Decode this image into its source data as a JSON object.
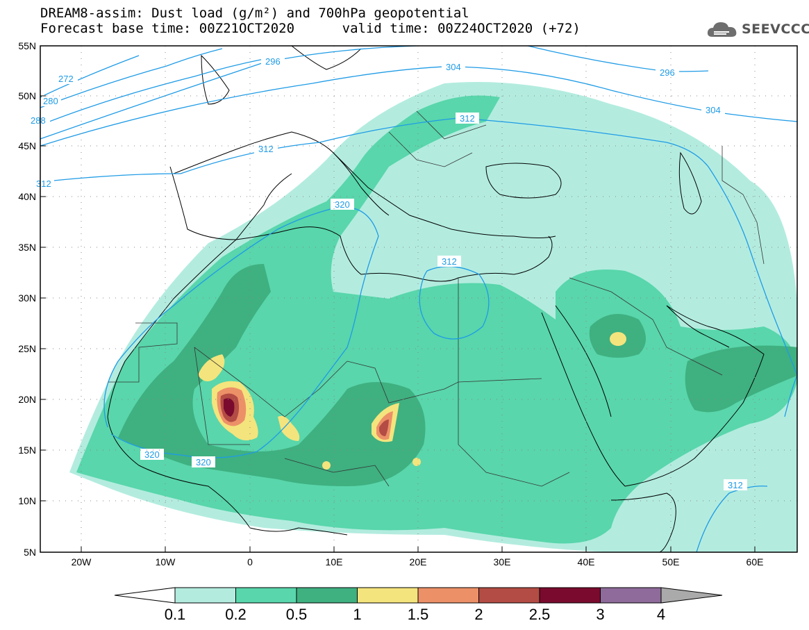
{
  "header": {
    "title_line1": "DREAM8-assim: Dust load (g/m²) and 700hPa geopotential",
    "title_line2": "Forecast base time: 00Z21OCT2020      valid time: 00Z24OCT2020 (+72)",
    "logo_text": "SEEVCCC"
  },
  "map": {
    "lon_range": [
      -25,
      65
    ],
    "lat_range": [
      5,
      55
    ],
    "lat_ticks": [
      "55N",
      "50N",
      "45N",
      "40N",
      "35N",
      "30N",
      "25N",
      "20N",
      "15N",
      "10N",
      "5N"
    ],
    "lon_ticks": [
      "20W",
      "10W",
      "0",
      "10E",
      "20E",
      "30E",
      "40E",
      "50E",
      "60E"
    ],
    "contour_labels": [
      "272",
      "280",
      "288",
      "296",
      "304",
      "296",
      "304",
      "312",
      "312",
      "312",
      "320",
      "320",
      "320",
      "312",
      "312"
    ]
  },
  "colorbar": {
    "labels": [
      "0.1",
      "0.2",
      "0.5",
      "1",
      "1.5",
      "2",
      "2.5",
      "3",
      "4"
    ],
    "colors": [
      "#b3ecdf",
      "#59d6ab",
      "#3fb080",
      "#f4e47d",
      "#ec9068",
      "#b34c44",
      "#7a0a2e",
      "#8e6b9a",
      "#aaaaaa"
    ]
  }
}
